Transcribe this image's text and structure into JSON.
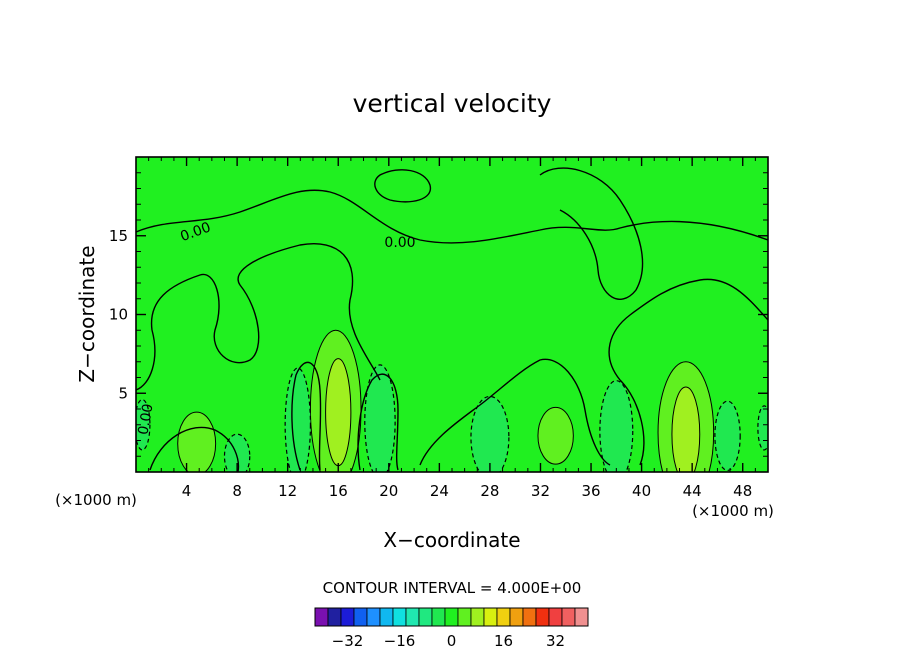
{
  "chart_data": {
    "type": "heatmap",
    "title": "vertical velocity",
    "xlabel": "X−coordinate",
    "ylabel": "Z−coordinate",
    "x_units_left": "(×1000 m)",
    "x_units_right": "(×1000 m)",
    "xlim": [
      0,
      50
    ],
    "ylim": [
      0,
      20
    ],
    "x_ticks": [
      4,
      8,
      12,
      16,
      20,
      24,
      28,
      32,
      36,
      40,
      44,
      48
    ],
    "y_ticks": [
      5,
      10,
      15
    ],
    "x_tick_labels": [
      "4",
      "8",
      "12",
      "16",
      "20",
      "24",
      "28",
      "32",
      "36",
      "40",
      "44",
      "48"
    ],
    "y_tick_labels": [
      "5",
      "10",
      "15"
    ],
    "contour_interval_text": "CONTOUR INTERVAL = 4.000E+00",
    "contour_labels": [
      "0.00",
      "0.00",
      "0.00"
    ],
    "colorbar": {
      "colors": [
        "#7a10b0",
        "#2020a0",
        "#1c1cd8",
        "#1060f0",
        "#1e90ff",
        "#10b8f0",
        "#10e0e0",
        "#20e8b0",
        "#20e880",
        "#20e850",
        "#20f020",
        "#60f020",
        "#a0f020",
        "#d8f010",
        "#f0d010",
        "#f0a010",
        "#f07010",
        "#f03010",
        "#f04040",
        "#f06060",
        "#f09090"
      ],
      "tick_labels": [
        "−32",
        "−16",
        "0",
        "16",
        "32"
      ],
      "tick_values": [
        -32,
        -16,
        0,
        16,
        32
      ],
      "range": [
        -42,
        42
      ]
    },
    "background_color": "#20f020",
    "features": [
      {
        "x": 15.8,
        "z": 4.0,
        "rx": 2.0,
        "rz": 5.0,
        "level": 4,
        "color": "#60f020"
      },
      {
        "x": 16.0,
        "z": 3.8,
        "rx": 1.0,
        "rz": 3.4,
        "level": 8,
        "color": "#a0f020"
      },
      {
        "x": 43.5,
        "z": 2.5,
        "rx": 2.2,
        "rz": 4.5,
        "level": 4,
        "color": "#60f020"
      },
      {
        "x": 43.5,
        "z": 2.4,
        "rx": 1.1,
        "rz": 3.0,
        "level": 8,
        "color": "#a0f020"
      },
      {
        "x": 4.8,
        "z": 1.8,
        "rx": 1.5,
        "rz": 2.0,
        "level": 4,
        "color": "#60f020"
      },
      {
        "x": 33.2,
        "z": 2.3,
        "rx": 1.4,
        "rz": 1.8,
        "level": 4,
        "color": "#60f020"
      },
      {
        "x": 12.8,
        "z": 3.0,
        "rx": 1.0,
        "rz": 3.6,
        "level": -4,
        "color": "#20e850"
      },
      {
        "x": 19.3,
        "z": 3.2,
        "rx": 1.2,
        "rz": 3.6,
        "level": -4,
        "color": "#20e850"
      },
      {
        "x": 28.0,
        "z": 2.2,
        "rx": 1.5,
        "rz": 2.6,
        "level": -4,
        "color": "#20e850"
      },
      {
        "x": 38.0,
        "z": 2.6,
        "rx": 1.3,
        "rz": 3.2,
        "level": -4,
        "color": "#20e850"
      },
      {
        "x": 8.0,
        "z": 1.0,
        "rx": 1.0,
        "rz": 1.4,
        "level": -4,
        "color": "#20e850"
      },
      {
        "x": 46.8,
        "z": 2.3,
        "rx": 1.0,
        "rz": 2.2,
        "level": -4,
        "color": "#20e850"
      },
      {
        "x": 0.5,
        "z": 3.0,
        "rx": 0.6,
        "rz": 1.6,
        "level": -4,
        "color": "#20e850"
      },
      {
        "x": 49.7,
        "z": 2.8,
        "rx": 0.5,
        "rz": 1.4,
        "level": -4,
        "color": "#20e850"
      }
    ]
  }
}
